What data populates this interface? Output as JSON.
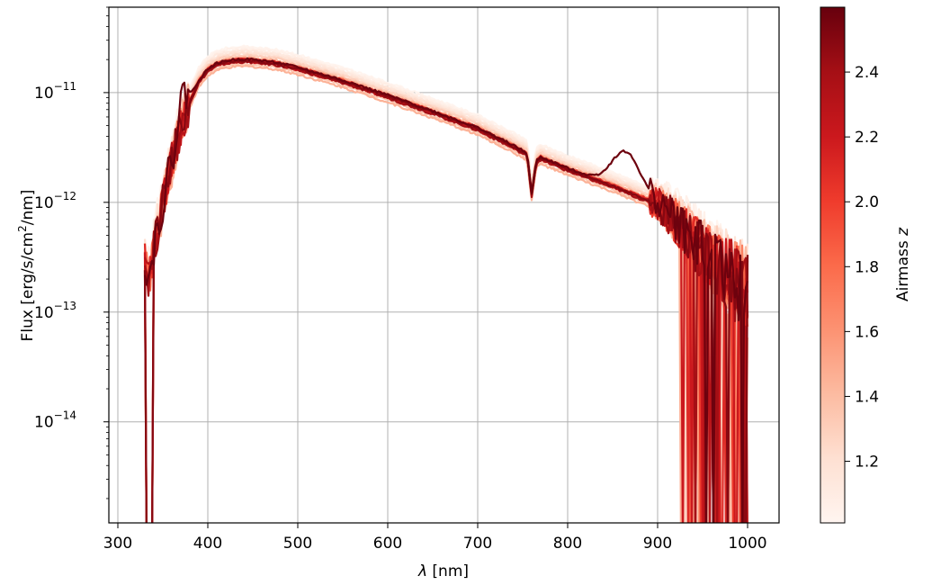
{
  "chart_data": {
    "type": "line",
    "title": "",
    "xlabel": "λ [nm]",
    "ylabel": "Flux [erg/s/cm²/nm]",
    "ylabel_parts": {
      "pre": "Flux [erg/s/cm",
      "sup": "2",
      "post": "/nm]"
    },
    "xscale": "linear",
    "yscale": "log",
    "xlim": [
      290,
      1035
    ],
    "ylim": [
      1.2e-15,
      6e-11
    ],
    "grid": true,
    "x_ticks": [
      300,
      400,
      500,
      600,
      700,
      800,
      900,
      1000
    ],
    "x_tick_labels": [
      "300",
      "400",
      "500",
      "600",
      "700",
      "800",
      "900",
      "1000"
    ],
    "y_ticks": [
      {
        "value": 1e-11,
        "base": "10",
        "exp": "−11"
      },
      {
        "value": 1e-12,
        "base": "10",
        "exp": "−12"
      },
      {
        "value": 1e-13,
        "base": "10",
        "exp": "−13"
      },
      {
        "value": 1e-14,
        "base": "10",
        "exp": "−14"
      }
    ],
    "colorbar": {
      "label": "Airmass z",
      "label_parts": {
        "text": "Airmass ",
        "italic": "z"
      },
      "range": [
        1.01,
        2.6
      ],
      "ticks": [
        1.2,
        1.4,
        1.6,
        1.8,
        2.0,
        2.2,
        2.4
      ],
      "tick_labels": [
        "1.2",
        "1.4",
        "1.6",
        "1.8",
        "2.0",
        "2.2",
        "2.4"
      ],
      "colors": [
        "#fff5f0",
        "#fee0d2",
        "#fcbba1",
        "#fc9272",
        "#fb6a4a",
        "#ef3b2c",
        "#cb181d",
        "#a50f15",
        "#67000d"
      ]
    },
    "base_spectrum": {
      "x": [
        330,
        335,
        340,
        350,
        360,
        370,
        380,
        390,
        400,
        410,
        420,
        430,
        440,
        450,
        475,
        500,
        550,
        600,
        650,
        700,
        740,
        755,
        760,
        765,
        770,
        800,
        850,
        880,
        900,
        920,
        940,
        960,
        980,
        1000
      ],
      "y": [
        3e-13,
        2e-13,
        4e-13,
        1e-12,
        2.4e-12,
        5e-12,
        8.5e-12,
        1.3e-11,
        1.65e-11,
        1.85e-11,
        1.95e-11,
        2e-11,
        2.02e-11,
        2e-11,
        1.9e-11,
        1.7e-11,
        1.3e-11,
        9.5e-12,
        6.8e-12,
        4.8e-12,
        3.3e-12,
        2.8e-12,
        1.2e-12,
        2.4e-12,
        2.6e-12,
        2.05e-12,
        1.45e-12,
        1.15e-12,
        1e-12,
        7e-13,
        4.5e-13,
        3e-13,
        2.2e-13,
        1.6e-13
      ]
    },
    "series": [
      {
        "airmass": 1.02,
        "scale": 1.3
      },
      {
        "airmass": 1.05,
        "scale": 1.26
      },
      {
        "airmass": 1.08,
        "scale": 1.22
      },
      {
        "airmass": 1.12,
        "scale": 1.19
      },
      {
        "airmass": 1.16,
        "scale": 1.16
      },
      {
        "airmass": 1.2,
        "scale": 1.13
      },
      {
        "airmass": 1.25,
        "scale": 1.1
      },
      {
        "airmass": 1.3,
        "scale": 1.08
      },
      {
        "airmass": 1.35,
        "scale": 0.9
      },
      {
        "airmass": 1.4,
        "scale": 1.04
      },
      {
        "airmass": 1.45,
        "scale": 0.86
      },
      {
        "airmass": 1.5,
        "scale": 1.02
      },
      {
        "airmass": 1.6,
        "scale": 0.98
      },
      {
        "airmass": 1.7,
        "scale": 1.0
      },
      {
        "airmass": 1.8,
        "scale": 0.97
      },
      {
        "airmass": 1.9,
        "scale": 0.99
      },
      {
        "airmass": 2.0,
        "scale": 0.96
      },
      {
        "airmass": 2.1,
        "scale": 1.0
      },
      {
        "airmass": 2.2,
        "scale": 0.95
      },
      {
        "airmass": 2.3,
        "scale": 0.98
      },
      {
        "airmass": 2.4,
        "scale": 0.94
      },
      {
        "airmass": 2.5,
        "scale": 0.97
      },
      {
        "airmass": 2.58,
        "scale": 1.0,
        "variant": "bump"
      }
    ]
  }
}
